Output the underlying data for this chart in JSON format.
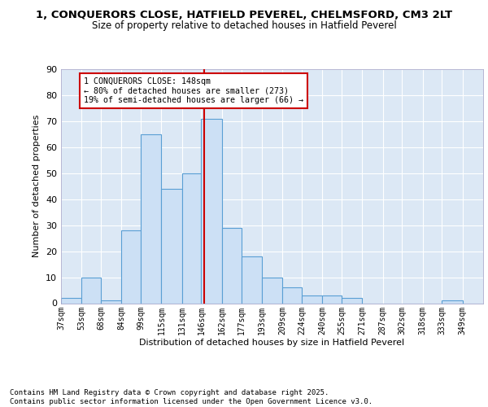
{
  "title_line1": "1, CONQUERORS CLOSE, HATFIELD PEVEREL, CHELMSFORD, CM3 2LT",
  "title_line2": "Size of property relative to detached houses in Hatfield Peverel",
  "xlabel": "Distribution of detached houses by size in Hatfield Peverel",
  "ylabel": "Number of detached properties",
  "bin_labels": [
    "37sqm",
    "53sqm",
    "68sqm",
    "84sqm",
    "99sqm",
    "115sqm",
    "131sqm",
    "146sqm",
    "162sqm",
    "177sqm",
    "193sqm",
    "209sqm",
    "224sqm",
    "240sqm",
    "255sqm",
    "271sqm",
    "287sqm",
    "302sqm",
    "318sqm",
    "333sqm",
    "349sqm"
  ],
  "bin_values": [
    2,
    10,
    1,
    28,
    65,
    44,
    50,
    71,
    29,
    18,
    10,
    6,
    3,
    3,
    2,
    0,
    0,
    0,
    0,
    1,
    0
  ],
  "bin_edges": [
    37,
    53,
    68,
    84,
    99,
    115,
    131,
    146,
    162,
    177,
    193,
    209,
    224,
    240,
    255,
    271,
    287,
    302,
    318,
    333,
    349,
    365
  ],
  "property_size": 148,
  "bar_facecolor": "#cce0f5",
  "bar_edgecolor": "#5a9fd4",
  "vline_color": "#cc0000",
  "annotation_text": "1 CONQUERORS CLOSE: 148sqm\n← 80% of detached houses are smaller (273)\n19% of semi-detached houses are larger (66) →",
  "annotation_box_edgecolor": "#cc0000",
  "annotation_box_facecolor": "#ffffff",
  "ylim": [
    0,
    90
  ],
  "yticks": [
    0,
    10,
    20,
    30,
    40,
    50,
    60,
    70,
    80,
    90
  ],
  "background_color": "#dce8f5",
  "grid_color": "#ffffff",
  "footer_text": "Contains HM Land Registry data © Crown copyright and database right 2025.\nContains public sector information licensed under the Open Government Licence v3.0.",
  "title_fontsize": 9.5,
  "subtitle_fontsize": 8.5,
  "footer_fontsize": 6.5
}
